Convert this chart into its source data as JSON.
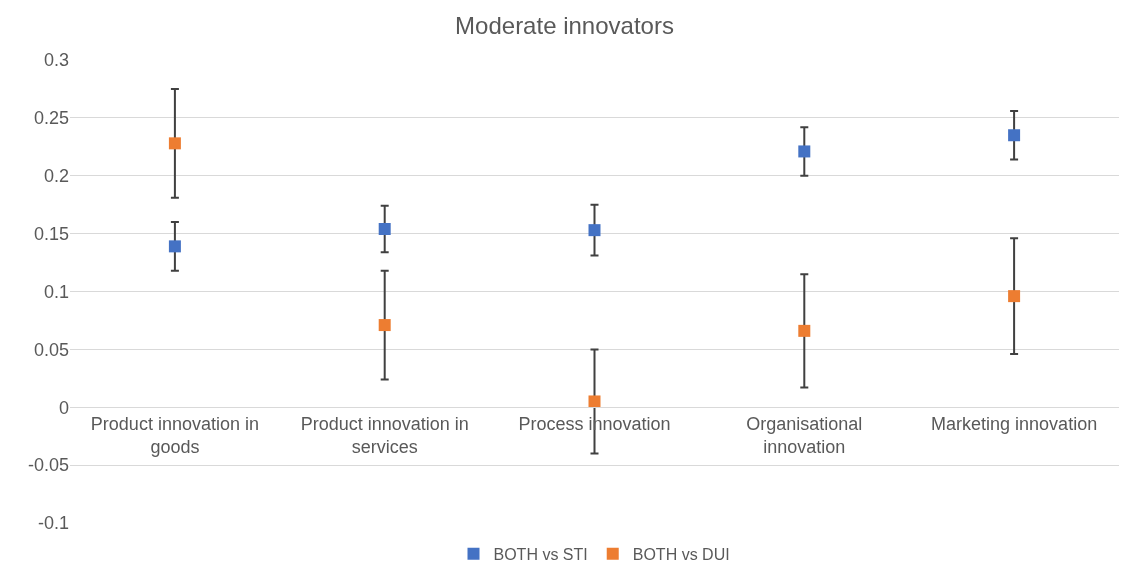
{
  "chart_data": {
    "type": "scatter",
    "title": "Moderate innovators",
    "categories": [
      "Product innovation in goods",
      "Product innovation in services",
      "Process innovation",
      "Organisational innovation",
      "Marketing innovation"
    ],
    "series": [
      {
        "name": "BOTH vs STI",
        "color": "#4472c4",
        "values": [
          0.139,
          0.154,
          0.153,
          0.221,
          0.235
        ],
        "errors": [
          0.021,
          0.02,
          0.022,
          0.021,
          0.021
        ]
      },
      {
        "name": "BOTH vs DUI",
        "color": "#ed7d31",
        "values": [
          0.228,
          0.071,
          0.005,
          0.066,
          0.096
        ],
        "errors": [
          0.047,
          0.047,
          0.045,
          0.049,
          0.05
        ]
      }
    ],
    "ylim": [
      -0.1,
      0.3
    ],
    "yticks": [
      -0.1,
      -0.05,
      0,
      0.05,
      0.1,
      0.15,
      0.2,
      0.25,
      0.3
    ],
    "grid": "y",
    "legend": "bottom",
    "marker": "square"
  }
}
